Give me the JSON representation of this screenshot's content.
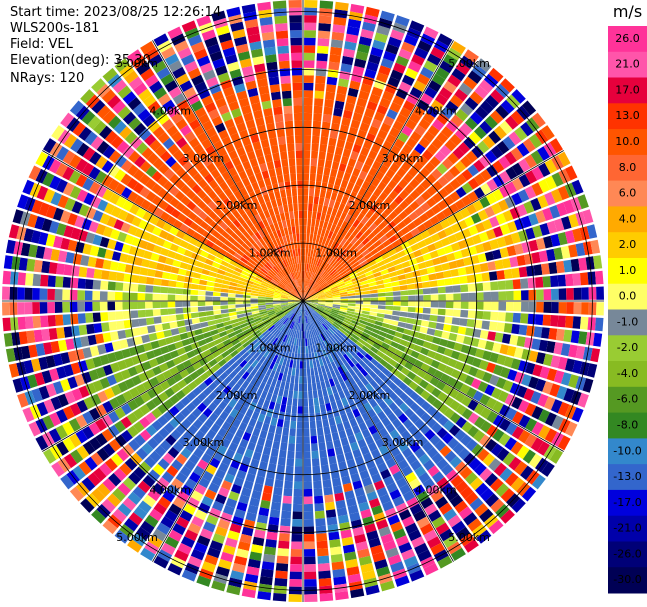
{
  "header": {
    "start_time": "Start time: 2023/08/25 12:26:14",
    "instrument": "WLS200s-181",
    "field": "Field: VEL",
    "elevation": "Elevation(deg): 35.30",
    "nrays": "NRays: 120"
  },
  "chart_data": {
    "type": "heatmap",
    "projection": "polar (PPI)",
    "field": "VEL",
    "nrays": 120,
    "max_range_km": 5.2,
    "range_rings_km": [
      1,
      2,
      3,
      4,
      5
    ],
    "range_ring_labels": [
      "1.00km",
      "2.00km",
      "3.00km",
      "4.00km",
      "5.00km"
    ],
    "spokes_deg": [
      0,
      30,
      60,
      90,
      120,
      150,
      180,
      210,
      240,
      270,
      300,
      330
    ],
    "colorbar": {
      "unit": "m/s",
      "tick_labels": [
        "26.0",
        "21.0",
        "17.0",
        "13.0",
        "10.0",
        "8.0",
        "6.0",
        "4.0",
        "2.0",
        "1.0",
        "0.0",
        "-1.0",
        "-2.0",
        "-4.0",
        "-6.0",
        "-8.0",
        "-10.0",
        "-13.0",
        "-17.0",
        "-21.0",
        "-26.0",
        "-30.0"
      ],
      "bins": [
        {
          "min": 26,
          "max": 30,
          "color": "#ff3399"
        },
        {
          "min": 21,
          "max": 26,
          "color": "#ff55aa"
        },
        {
          "min": 17,
          "max": 21,
          "color": "#e6003c"
        },
        {
          "min": 13,
          "max": 17,
          "color": "#ff3300"
        },
        {
          "min": 10,
          "max": 13,
          "color": "#ff5500"
        },
        {
          "min": 8,
          "max": 10,
          "color": "#ff6633"
        },
        {
          "min": 6,
          "max": 8,
          "color": "#ff8855"
        },
        {
          "min": 4,
          "max": 6,
          "color": "#ffaa00"
        },
        {
          "min": 2,
          "max": 4,
          "color": "#ffcc00"
        },
        {
          "min": 1,
          "max": 2,
          "color": "#ffff00"
        },
        {
          "min": 0,
          "max": 1,
          "color": "#ffff66"
        },
        {
          "min": -1,
          "max": 0,
          "color": "#778899"
        },
        {
          "min": -2,
          "max": -1,
          "color": "#99cc33"
        },
        {
          "min": -4,
          "max": -2,
          "color": "#88bb22"
        },
        {
          "min": -6,
          "max": -4,
          "color": "#559922"
        },
        {
          "min": -8,
          "max": -6,
          "color": "#338822"
        },
        {
          "min": -10,
          "max": -8,
          "color": "#3388cc"
        },
        {
          "min": -13,
          "max": -10,
          "color": "#3366cc"
        },
        {
          "min": -17,
          "max": -13,
          "color": "#0000dd"
        },
        {
          "min": -21,
          "max": -17,
          "color": "#0000aa"
        },
        {
          "min": -26,
          "max": -21,
          "color": "#000077"
        },
        {
          "min": -30,
          "max": -26,
          "color": "#000055"
        }
      ]
    },
    "sector_means": [
      {
        "azimuth_from_deg": 300,
        "azimuth_to_deg": 60,
        "mean_velocity_ms": 11.5
      },
      {
        "azimuth_from_deg": 60,
        "azimuth_to_deg": 85,
        "mean_velocity_ms": 3.0
      },
      {
        "azimuth_from_deg": 85,
        "azimuth_to_deg": 105,
        "mean_velocity_ms": -0.5
      },
      {
        "azimuth_from_deg": 105,
        "azimuth_to_deg": 130,
        "mean_velocity_ms": -4.0
      },
      {
        "azimuth_from_deg": 130,
        "azimuth_to_deg": 230,
        "mean_velocity_ms": -11.5
      },
      {
        "azimuth_from_deg": 230,
        "azimuth_to_deg": 255,
        "mean_velocity_ms": -4.0
      },
      {
        "azimuth_from_deg": 255,
        "azimuth_to_deg": 275,
        "mean_velocity_ms": -0.5
      },
      {
        "azimuth_from_deg": 275,
        "azimuth_to_deg": 300,
        "mean_velocity_ms": 3.0
      }
    ],
    "noise_range_km": 3.8
  }
}
